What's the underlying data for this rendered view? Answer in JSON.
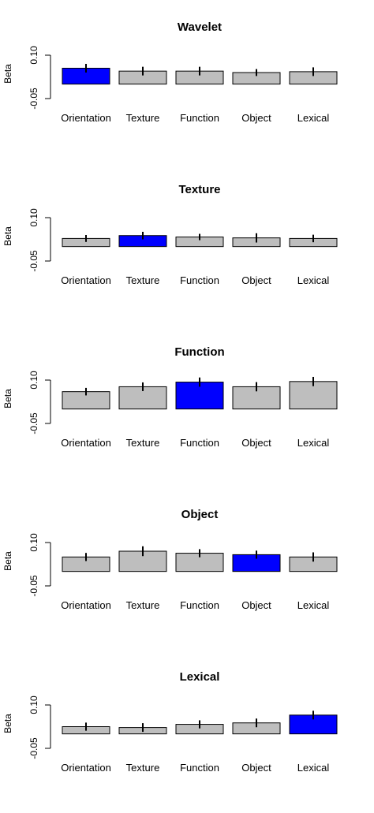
{
  "colors": {
    "highlight": "#0000ff",
    "default": "#bebebe",
    "stroke": "#000000"
  },
  "chart_data": [
    {
      "type": "bar",
      "title": "Wavelet",
      "ylabel": "Beta",
      "yticks": [
        "-0.05",
        "0.10"
      ],
      "ylim": [
        -0.05,
        0.1
      ],
      "categories": [
        "Orientation",
        "Texture",
        "Function",
        "Object",
        "Lexical"
      ],
      "values": [
        0.055,
        0.045,
        0.045,
        0.04,
        0.043
      ],
      "errors": [
        0.015,
        0.015,
        0.015,
        0.012,
        0.015
      ],
      "highlight": 0
    },
    {
      "type": "bar",
      "title": "Texture",
      "ylabel": "Beta",
      "yticks": [
        "-0.05",
        "0.10"
      ],
      "ylim": [
        -0.05,
        0.1
      ],
      "categories": [
        "Orientation",
        "Texture",
        "Function",
        "Object",
        "Lexical"
      ],
      "values": [
        0.028,
        0.038,
        0.033,
        0.03,
        0.028
      ],
      "errors": [
        0.012,
        0.013,
        0.011,
        0.016,
        0.013
      ],
      "highlight": 1
    },
    {
      "type": "bar",
      "title": "Function",
      "ylabel": "Beta",
      "yticks": [
        "-0.05",
        "0.10"
      ],
      "ylim": [
        -0.05,
        0.1
      ],
      "categories": [
        "Orientation",
        "Texture",
        "Function",
        "Object",
        "Lexical"
      ],
      "values": [
        0.06,
        0.077,
        0.093,
        0.077,
        0.095
      ],
      "errors": [
        0.013,
        0.015,
        0.016,
        0.016,
        0.016
      ],
      "highlight": 2
    },
    {
      "type": "bar",
      "title": "Object",
      "ylabel": "Beta",
      "yticks": [
        "-0.05",
        "0.10"
      ],
      "ylim": [
        -0.05,
        0.1
      ],
      "categories": [
        "Orientation",
        "Texture",
        "Function",
        "Object",
        "Lexical"
      ],
      "values": [
        0.05,
        0.07,
        0.063,
        0.058,
        0.05
      ],
      "errors": [
        0.014,
        0.017,
        0.014,
        0.014,
        0.016
      ],
      "highlight": 3
    },
    {
      "type": "bar",
      "title": "Lexical",
      "ylabel": "Beta",
      "yticks": [
        "-0.05",
        "0.10"
      ],
      "ylim": [
        -0.05,
        0.1
      ],
      "categories": [
        "Orientation",
        "Texture",
        "Function",
        "Object",
        "Lexical"
      ],
      "values": [
        0.025,
        0.022,
        0.033,
        0.038,
        0.065
      ],
      "errors": [
        0.014,
        0.015,
        0.014,
        0.015,
        0.015
      ],
      "highlight": 4
    }
  ]
}
